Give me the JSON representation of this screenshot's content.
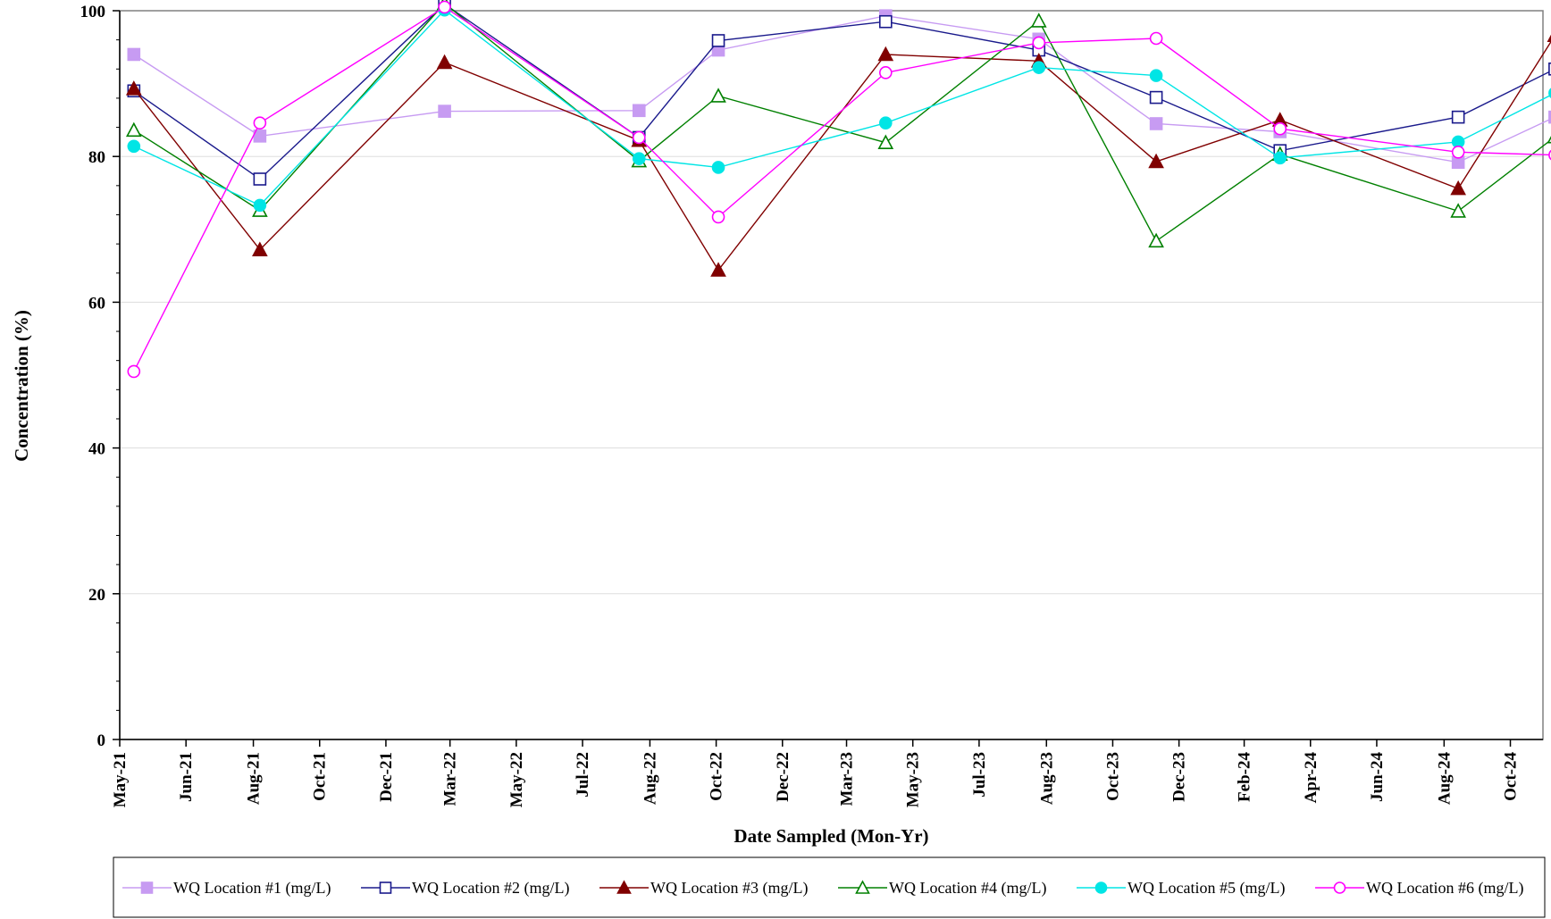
{
  "chart_data": {
    "type": "line",
    "title": "",
    "xlabel": "Date Sampled (Mon-Yr)",
    "ylabel": "Concentration (%)",
    "ylim": [
      0,
      100
    ],
    "yticks": [
      0,
      20,
      40,
      60,
      80,
      100
    ],
    "xlim": [
      "2021-05-01",
      "2024-12-01"
    ],
    "xticks": [
      {
        "date": "2021-05-01",
        "label": "May-21"
      },
      {
        "date": "2021-07-01",
        "label": "Jun-21"
      },
      {
        "date": "2021-09-01",
        "label": "Aug-21"
      },
      {
        "date": "2021-11-01",
        "label": "Oct-21"
      },
      {
        "date": "2022-01-01",
        "label": "Dec-21"
      },
      {
        "date": "2022-03-01",
        "label": "Mar-22"
      },
      {
        "date": "2022-05-01",
        "label": "May-22"
      },
      {
        "date": "2022-07-01",
        "label": "Jul-22"
      },
      {
        "date": "2022-09-01",
        "label": "Aug-22"
      },
      {
        "date": "2022-11-01",
        "label": "Oct-22"
      },
      {
        "date": "2023-01-01",
        "label": "Dec-22"
      },
      {
        "date": "2023-03-01",
        "label": "Mar-23"
      },
      {
        "date": "2023-05-01",
        "label": "May-23"
      },
      {
        "date": "2023-07-01",
        "label": "Jul-23"
      },
      {
        "date": "2023-09-01",
        "label": "Aug-23"
      },
      {
        "date": "2023-11-01",
        "label": "Oct-23"
      },
      {
        "date": "2024-01-01",
        "label": "Dec-23"
      },
      {
        "date": "2024-03-01",
        "label": "Feb-24"
      },
      {
        "date": "2024-05-01",
        "label": "Apr-24"
      },
      {
        "date": "2024-07-01",
        "label": "Jun-24"
      },
      {
        "date": "2024-09-01",
        "label": "Aug-24"
      },
      {
        "date": "2024-11-01",
        "label": "Oct-24"
      },
      {
        "date": "2025-01-01",
        "label": "Dec-24"
      }
    ],
    "x": [
      "2021-05-14",
      "2021-09-07",
      "2022-02-24",
      "2022-08-22",
      "2022-11-03",
      "2023-04-06",
      "2023-08-25",
      "2023-12-11",
      "2024-04-03",
      "2024-09-14",
      "2024-12-12"
    ],
    "grid": true,
    "legend_position": "bottom",
    "series": [
      {
        "name": "WQ Location #1 (mg/L)",
        "color": "#c79bf2",
        "marker": "square-filled",
        "values": [
          94.0,
          82.8,
          86.2,
          86.3,
          94.6,
          99.3,
          96.1,
          84.5,
          83.4,
          79.2,
          85.4
        ]
      },
      {
        "name": "WQ Location #2 (mg/L)",
        "color": "#1a1a8c",
        "marker": "square-open",
        "values": [
          89.0,
          76.9,
          100.9,
          82.6,
          95.9,
          98.5,
          94.6,
          88.1,
          80.8,
          85.4,
          92.0
        ]
      },
      {
        "name": "WQ Location #3 (mg/L)",
        "color": "#800000",
        "marker": "triangle-filled",
        "values": [
          89.3,
          67.2,
          92.9,
          82.2,
          64.4,
          94.0,
          93.1,
          79.3,
          85.0,
          75.6,
          96.6
        ]
      },
      {
        "name": "WQ Location #4 (mg/L)",
        "color": "#008000",
        "marker": "triangle-open",
        "values": [
          83.6,
          72.6,
          101.0,
          79.4,
          88.3,
          81.9,
          98.6,
          68.4,
          80.3,
          72.5,
          82.7
        ]
      },
      {
        "name": "WQ Location #5 (mg/L)",
        "color": "#00e5e5",
        "marker": "circle-filled",
        "values": [
          81.4,
          73.3,
          100.1,
          79.7,
          78.5,
          84.6,
          92.2,
          91.1,
          79.8,
          82.0,
          88.7
        ]
      },
      {
        "name": "WQ Location #6 (mg/L)",
        "color": "#ff00ff",
        "marker": "circle-open",
        "values": [
          50.5,
          84.6,
          100.5,
          82.6,
          71.7,
          91.5,
          95.6,
          96.2,
          83.8,
          80.6,
          80.2
        ]
      }
    ]
  }
}
